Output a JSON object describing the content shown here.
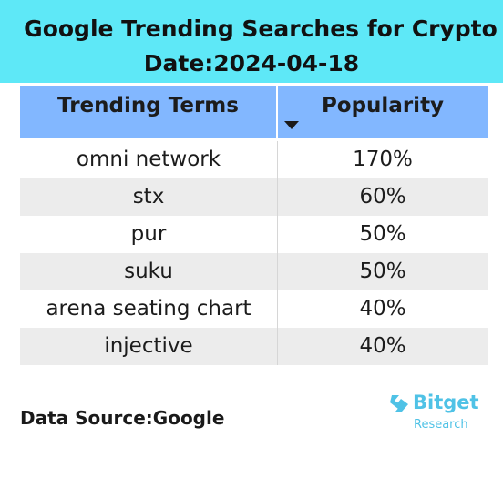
{
  "header": {
    "title": "Google Trending Searches for Crypto",
    "date": "Date:2024-04-18"
  },
  "chart_data": {
    "type": "table",
    "columns": [
      "Trending Terms",
      "Popularity"
    ],
    "sort_indicator": "descending",
    "rows": [
      {
        "term": "omni network",
        "popularity": "170%"
      },
      {
        "term": "stx",
        "popularity": "60%"
      },
      {
        "term": "pur",
        "popularity": "50%"
      },
      {
        "term": "suku",
        "popularity": "50%"
      },
      {
        "term": "arena seating chart",
        "popularity": "40%"
      },
      {
        "term": "injective",
        "popularity": "40%"
      }
    ]
  },
  "footer": {
    "source": "Data Source:Google",
    "brand_name": "Bitget",
    "brand_sub": "Research"
  },
  "colors": {
    "title_bg": "#5ee8f7",
    "header_bg": "#82b7ff",
    "stripe_bg": "#ececec",
    "brand": "#4fc2e6"
  }
}
